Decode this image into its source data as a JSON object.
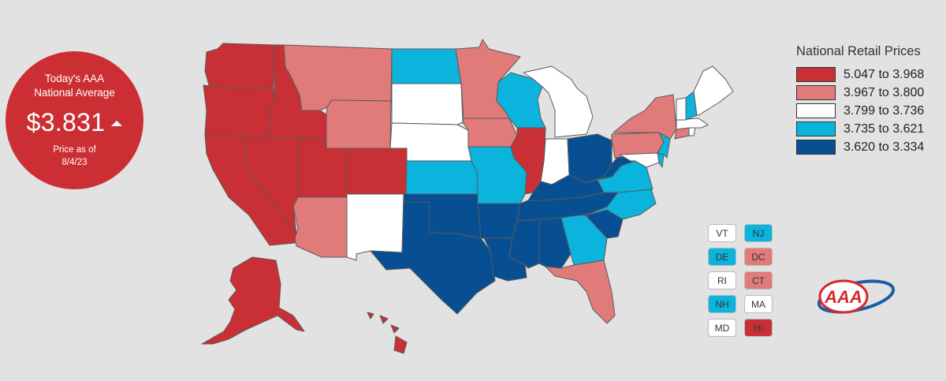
{
  "badge": {
    "line1": "Today's AAA",
    "line2": "National Average",
    "price": "$3.831",
    "trend_icon": "up-arrow-icon",
    "asof_label": "Price as of",
    "asof_date": "8/4/23",
    "color": "#cc2f33"
  },
  "legend": {
    "title": "National Retail Prices",
    "ranges": [
      {
        "label": "5.047 to 3.968",
        "color": "#c93035"
      },
      {
        "label": "3.967 to 3.800",
        "color": "#e07b7a"
      },
      {
        "label": "3.799 to 3.736",
        "color": "#ffffff"
      },
      {
        "label": "3.735 to 3.621",
        "color": "#0bb4dc"
      },
      {
        "label": "3.620 to 3.334",
        "color": "#074f92"
      }
    ]
  },
  "states": {
    "WA": "r",
    "OR": "r",
    "CA": "r",
    "NV": "r",
    "ID": "r",
    "UT": "r",
    "CO": "r",
    "IL": "r",
    "AK": "r",
    "HI": "r",
    "MT": "p",
    "WY": "p",
    "AZ": "p",
    "MN": "p",
    "IA": "p",
    "NY": "p",
    "PA": "p",
    "FL": "p",
    "DC": "p",
    "CT": "p",
    "SD": "w",
    "NE": "w",
    "NM": "w",
    "MI": "w",
    "IN": "w",
    "ME": "w",
    "VT": "w",
    "MA": "w",
    "RI": "w",
    "MD": "w",
    "ND": "c",
    "WI": "c",
    "KS": "c",
    "MO": "c",
    "GA": "c",
    "VA": "c",
    "NC": "c",
    "NJ": "c",
    "DE": "c",
    "NH": "c",
    "TX": "b",
    "OK": "b",
    "AR": "b",
    "LA": "b",
    "MS": "b",
    "AL": "b",
    "TN": "b",
    "KY": "b",
    "OH": "b",
    "WV": "b",
    "SC": "b"
  },
  "small_states": [
    {
      "label": "VT",
      "bucket": "w"
    },
    {
      "label": "NJ",
      "bucket": "c"
    },
    {
      "label": "DE",
      "bucket": "c"
    },
    {
      "label": "DC",
      "bucket": "p"
    },
    {
      "label": "RI",
      "bucket": "w"
    },
    {
      "label": "CT",
      "bucket": "p"
    },
    {
      "label": "NH",
      "bucket": "c"
    },
    {
      "label": "MA",
      "bucket": "w"
    },
    {
      "label": "MD",
      "bucket": "w"
    },
    {
      "label": "HI",
      "bucket": "r"
    }
  ],
  "bucket_colors": {
    "r": "#c93035",
    "p": "#e07b7a",
    "w": "#ffffff",
    "c": "#0bb4dc",
    "b": "#074f92"
  },
  "logo": {
    "text": "AAA",
    "icon": "aaa-logo-icon"
  }
}
